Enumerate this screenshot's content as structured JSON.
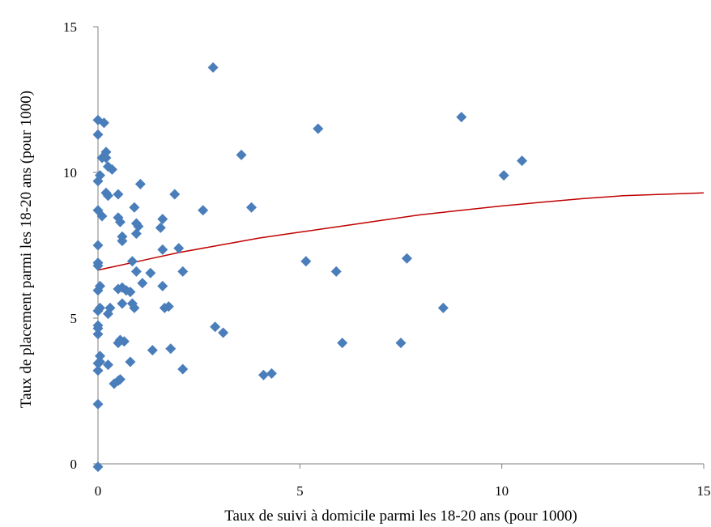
{
  "chart_data": {
    "type": "scatter",
    "title": "",
    "xlabel": "Taux de suivi à domicile parmi les 18-20 ans (pour 1000)",
    "ylabel": "Taux de placement parmi  les  18-20 ans (pour 1000)",
    "xlim": [
      0,
      15
    ],
    "ylim": [
      0,
      15
    ],
    "x_ticks": [
      "0",
      "5",
      "10",
      "15"
    ],
    "y_ticks": [
      "0",
      "5",
      "10",
      "15"
    ],
    "grid": false,
    "legend": "none",
    "colors": {
      "points": "#4a7ebb",
      "fit": "#c00000",
      "axis": "#7f7f7f"
    },
    "series": [
      {
        "points": [
          [
            0.0,
            11.8
          ],
          [
            0.15,
            11.7
          ],
          [
            0.0,
            11.3
          ],
          [
            0.1,
            10.5
          ],
          [
            0.2,
            10.7
          ],
          [
            0.2,
            10.5
          ],
          [
            0.25,
            10.2
          ],
          [
            0.35,
            10.1
          ],
          [
            0.05,
            9.9
          ],
          [
            0.0,
            9.7
          ],
          [
            0.2,
            9.3
          ],
          [
            0.25,
            9.2
          ],
          [
            0.5,
            9.25
          ],
          [
            1.05,
            9.6
          ],
          [
            0.0,
            8.7
          ],
          [
            0.1,
            8.5
          ],
          [
            0.5,
            8.45
          ],
          [
            0.55,
            8.3
          ],
          [
            0.9,
            8.8
          ],
          [
            0.95,
            8.25
          ],
          [
            1.0,
            8.15
          ],
          [
            0.95,
            7.9
          ],
          [
            0.6,
            7.8
          ],
          [
            0.6,
            7.65
          ],
          [
            1.6,
            8.4
          ],
          [
            1.55,
            8.1
          ],
          [
            1.6,
            7.35
          ],
          [
            2.0,
            7.4
          ],
          [
            1.9,
            9.25
          ],
          [
            2.6,
            8.7
          ],
          [
            2.85,
            13.6
          ],
          [
            3.55,
            10.6
          ],
          [
            3.8,
            8.8
          ],
          [
            5.45,
            11.5
          ],
          [
            9.0,
            11.9
          ],
          [
            10.5,
            10.4
          ],
          [
            10.05,
            9.9
          ],
          [
            0.0,
            7.5
          ],
          [
            0.0,
            6.9
          ],
          [
            0.0,
            6.8
          ],
          [
            0.85,
            6.95
          ],
          [
            0.95,
            6.6
          ],
          [
            1.1,
            6.2
          ],
          [
            1.3,
            6.55
          ],
          [
            0.05,
            6.1
          ],
          [
            0.0,
            5.95
          ],
          [
            0.5,
            6.0
          ],
          [
            0.6,
            6.05
          ],
          [
            0.7,
            5.95
          ],
          [
            0.8,
            5.9
          ],
          [
            0.6,
            5.5
          ],
          [
            0.85,
            5.5
          ],
          [
            0.9,
            5.35
          ],
          [
            1.6,
            6.1
          ],
          [
            2.1,
            6.6
          ],
          [
            1.65,
            5.35
          ],
          [
            1.75,
            5.4
          ],
          [
            0.05,
            5.35
          ],
          [
            0.0,
            5.25
          ],
          [
            0.25,
            5.15
          ],
          [
            0.3,
            5.35
          ],
          [
            0.0,
            4.75
          ],
          [
            0.0,
            4.65
          ],
          [
            0.0,
            4.45
          ],
          [
            0.5,
            4.15
          ],
          [
            0.65,
            4.2
          ],
          [
            0.55,
            4.25
          ],
          [
            1.35,
            3.9
          ],
          [
            1.8,
            3.95
          ],
          [
            0.05,
            3.7
          ],
          [
            0.0,
            3.45
          ],
          [
            0.05,
            3.5
          ],
          [
            0.25,
            3.4
          ],
          [
            0.8,
            3.5
          ],
          [
            0.0,
            3.2
          ],
          [
            2.1,
            3.25
          ],
          [
            0.4,
            2.75
          ],
          [
            0.5,
            2.85
          ],
          [
            0.55,
            2.9
          ],
          [
            0.0,
            2.05
          ],
          [
            0.0,
            -0.1
          ],
          [
            2.9,
            4.7
          ],
          [
            3.1,
            4.5
          ],
          [
            4.1,
            3.05
          ],
          [
            4.3,
            3.1
          ],
          [
            5.15,
            6.95
          ],
          [
            5.9,
            6.6
          ],
          [
            6.05,
            4.15
          ],
          [
            7.5,
            4.15
          ],
          [
            7.65,
            7.05
          ],
          [
            8.55,
            5.35
          ]
        ]
      },
      {
        "type": "line",
        "points": [
          [
            0,
            6.65
          ],
          [
            1,
            6.95
          ],
          [
            2,
            7.25
          ],
          [
            3,
            7.5
          ],
          [
            4,
            7.75
          ],
          [
            5,
            7.95
          ],
          [
            6,
            8.15
          ],
          [
            7,
            8.35
          ],
          [
            8,
            8.55
          ],
          [
            9,
            8.7
          ],
          [
            10,
            8.85
          ],
          [
            11,
            8.98
          ],
          [
            12,
            9.1
          ],
          [
            13,
            9.2
          ],
          [
            14,
            9.25
          ],
          [
            15,
            9.3
          ]
        ]
      }
    ]
  }
}
